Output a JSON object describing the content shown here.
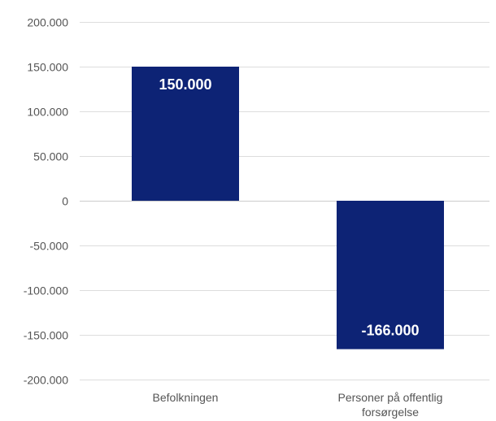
{
  "chart_data": {
    "type": "bar",
    "categories": [
      "Befolkningen",
      "Personer på offentlig forsørgelse"
    ],
    "category_lines": [
      [
        "Befolkningen"
      ],
      [
        "Personer på offentlig",
        "forsørgelse"
      ]
    ],
    "values": [
      150000,
      -166000
    ],
    "data_labels": [
      "150.000",
      "-166.000"
    ],
    "ylim": [
      -200000,
      200000
    ],
    "yticks": [
      200000,
      150000,
      100000,
      50000,
      0,
      -50000,
      -100000,
      -150000,
      -200000
    ],
    "ytick_labels": [
      "200.000",
      "150.000",
      "100.000",
      "50.000",
      "0",
      "-50.000",
      "-100.000",
      "-150.000",
      "-200.000"
    ],
    "grid": true,
    "bar_color": "#0d2375"
  }
}
